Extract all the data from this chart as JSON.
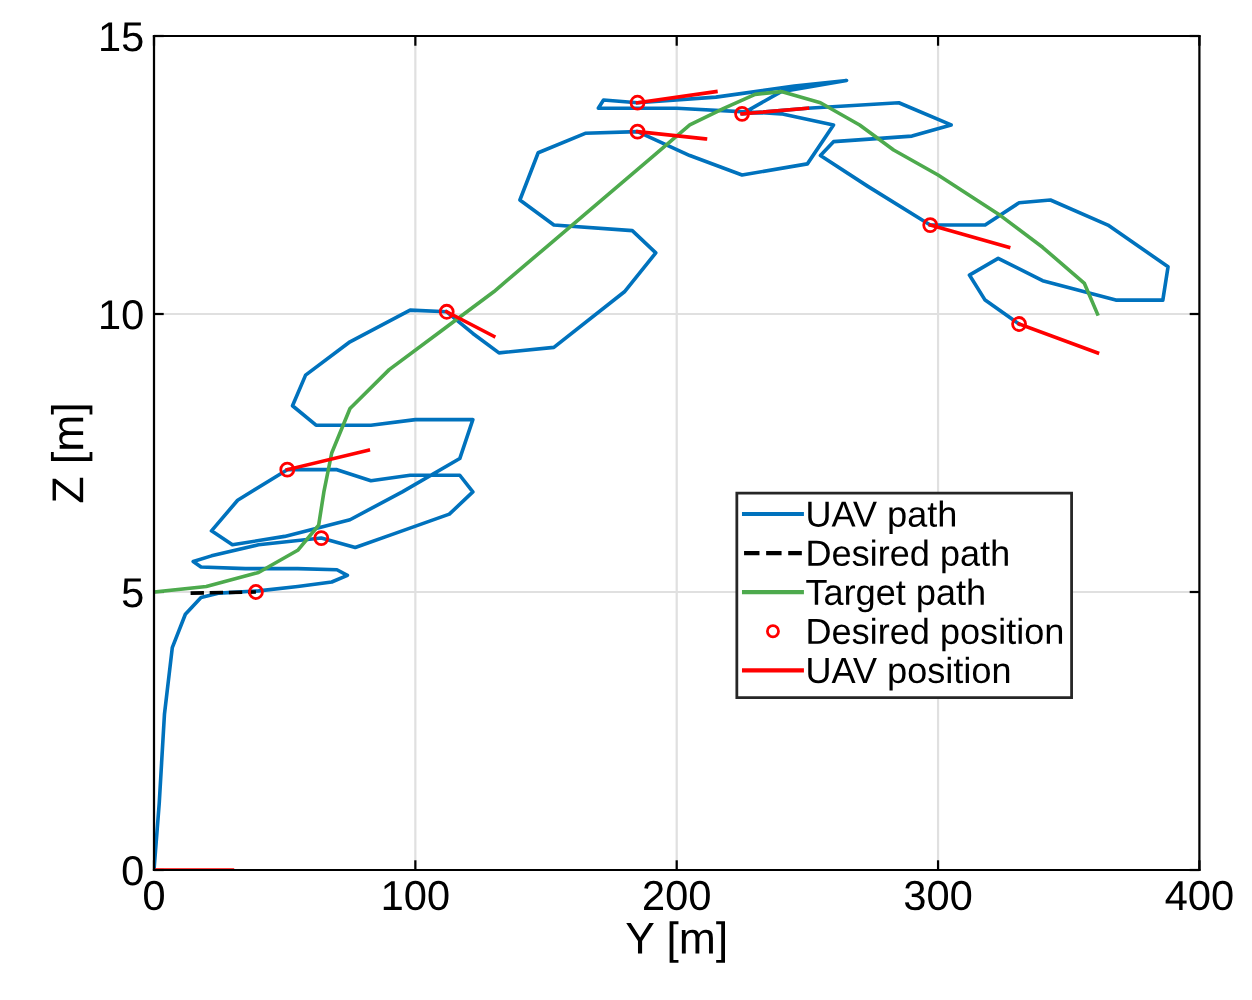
{
  "chart_data": {
    "type": "line",
    "xlabel": "Y [m]",
    "ylabel": "Z [m]",
    "xlim": [
      0,
      400
    ],
    "xticks": [
      0,
      100,
      200,
      300,
      400
    ],
    "ylim": [
      0,
      15
    ],
    "yticks": [
      0,
      5,
      10,
      15
    ],
    "grid": true,
    "legend": "lower right",
    "series": [
      {
        "name": "UAV path",
        "color": "#0072bd",
        "line_style": "solid",
        "marker": "none",
        "x": [
          0,
          2,
          4,
          7,
          12,
          18,
          25,
          40,
          55,
          68,
          74,
          70,
          55,
          35,
          18,
          15,
          22,
          40,
          64,
          77,
          92,
          113,
          122,
          117,
          98,
          83,
          70,
          51,
          32,
          22,
          30,
          50,
          75,
          95,
          117,
          122,
          100,
          83,
          62,
          53,
          58,
          75,
          98,
          112,
          122,
          132,
          153,
          180,
          192,
          183,
          153,
          140,
          147,
          165,
          185,
          205,
          225,
          250,
          260,
          240,
          200,
          170,
          172,
          185,
          215,
          245,
          265,
          240,
          225,
          250,
          285,
          305,
          290,
          260,
          255,
          273,
          297,
          318,
          331,
          343,
          365,
          388,
          386,
          368,
          340,
          323,
          312,
          318,
          331
        ],
        "values": [
          0,
          1.2,
          2.8,
          4.0,
          4.6,
          4.9,
          4.98,
          5.02,
          5.1,
          5.18,
          5.3,
          5.4,
          5.42,
          5.42,
          5.45,
          5.55,
          5.65,
          5.85,
          5.97,
          5.8,
          6.05,
          6.4,
          6.8,
          7.1,
          7.1,
          7.0,
          7.2,
          7.2,
          6.65,
          6.1,
          5.85,
          6.0,
          6.3,
          6.8,
          7.4,
          8.1,
          8.1,
          8.0,
          8.0,
          8.35,
          8.9,
          9.5,
          10.07,
          10.04,
          9.65,
          9.3,
          9.4,
          10.4,
          11.1,
          11.5,
          11.6,
          12.05,
          12.9,
          13.25,
          13.28,
          12.85,
          12.5,
          12.7,
          13.4,
          13.6,
          13.7,
          13.7,
          13.85,
          13.8,
          13.9,
          14.1,
          14.2,
          14.0,
          13.6,
          13.7,
          13.8,
          13.4,
          13.2,
          13.1,
          12.85,
          12.3,
          11.6,
          11.6,
          12.0,
          12.05,
          11.6,
          10.85,
          10.25,
          10.25,
          10.6,
          11.0,
          10.7,
          10.25,
          9.82
        ]
      },
      {
        "name": "Desired path",
        "color": "#000000",
        "line_style": "dashed",
        "marker": "none",
        "x": [
          14,
          39
        ],
        "values": [
          4.98,
          5.0
        ]
      },
      {
        "name": "Target path",
        "color": "#4daa4d",
        "line_style": "solid",
        "marker": "none",
        "x": [
          0,
          20,
          40,
          55,
          63,
          65,
          68,
          75,
          90,
          110,
          130,
          150,
          170,
          190,
          205,
          218,
          230,
          240,
          255,
          270,
          283,
          300,
          323,
          340,
          356,
          361
        ],
        "values": [
          5,
          5.1,
          5.35,
          5.75,
          6.2,
          6.8,
          7.5,
          8.3,
          9.0,
          9.7,
          10.4,
          11.2,
          12.0,
          12.8,
          13.4,
          13.7,
          13.95,
          14.0,
          13.8,
          13.4,
          12.95,
          12.5,
          11.8,
          11.2,
          10.55,
          10.0
        ]
      },
      {
        "name": "Desired position",
        "type": "scatter",
        "color": "#ff0000",
        "marker": "circle",
        "x": [
          39,
          64,
          51,
          112,
          185,
          185,
          225,
          297,
          331
        ],
        "values": [
          5.0,
          5.97,
          7.2,
          10.04,
          13.28,
          13.8,
          13.6,
          11.6,
          9.82
        ]
      },
      {
        "name": "UAV position",
        "color": "#ff0000",
        "line_style": "solid",
        "marker": "none",
        "x": [
          0,
          30,
          null,
          51,
          82,
          null,
          112,
          130,
          null,
          185,
          211,
          null,
          185,
          215,
          null,
          225,
          250,
          null,
          297,
          327,
          null,
          331,
          361
        ],
        "values": [
          0,
          0,
          null,
          7.2,
          7.55,
          null,
          10.04,
          9.6,
          null,
          13.28,
          13.15,
          null,
          13.8,
          14.0,
          null,
          13.6,
          13.7,
          null,
          11.6,
          11.2,
          null,
          9.82,
          9.3
        ]
      }
    ]
  }
}
